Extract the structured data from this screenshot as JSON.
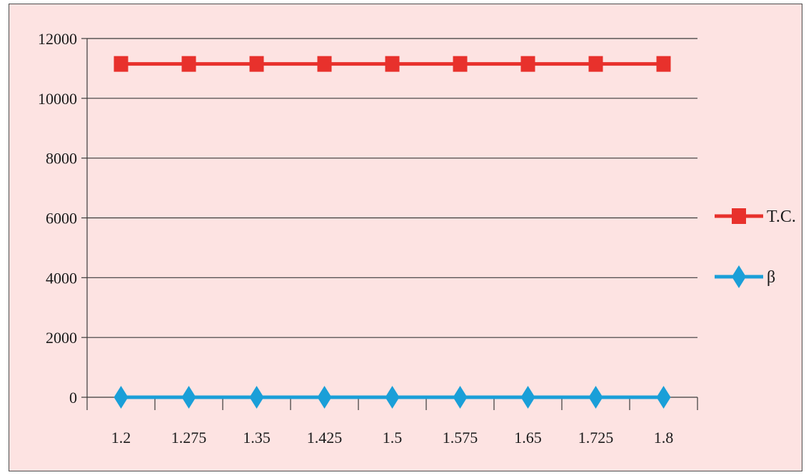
{
  "chart_data": {
    "type": "line",
    "title": "",
    "xlabel": "",
    "ylabel": "",
    "categories": [
      "1.2",
      "1.275",
      "1.35",
      "1.425",
      "1.5",
      "1.575",
      "1.65",
      "1.725",
      "1.8"
    ],
    "x": [
      1.2,
      1.275,
      1.35,
      1.425,
      1.5,
      1.575,
      1.65,
      1.725,
      1.8
    ],
    "ylim": [
      0,
      12000
    ],
    "yticks": [
      0,
      2000,
      4000,
      6000,
      8000,
      10000,
      12000
    ],
    "ytick_labels": [
      "0",
      "2000",
      "4000",
      "6000",
      "8000",
      "10000",
      "12000"
    ],
    "grid": "horizontal",
    "legend_position": "right",
    "series": [
      {
        "name": "T.C.",
        "marker": "square",
        "color": "#e8312c",
        "values": [
          11150,
          11150,
          11150,
          11150,
          11150,
          11150,
          11150,
          11150,
          11150
        ]
      },
      {
        "name": "β",
        "marker": "diamond",
        "color": "#1a9fd8",
        "values": [
          0,
          0,
          0,
          0,
          0,
          0,
          0,
          0,
          0
        ]
      }
    ]
  },
  "colors": {
    "background": "#fde3e2",
    "gridline": "#3a3a3a",
    "axis": "#3a3a3a"
  }
}
